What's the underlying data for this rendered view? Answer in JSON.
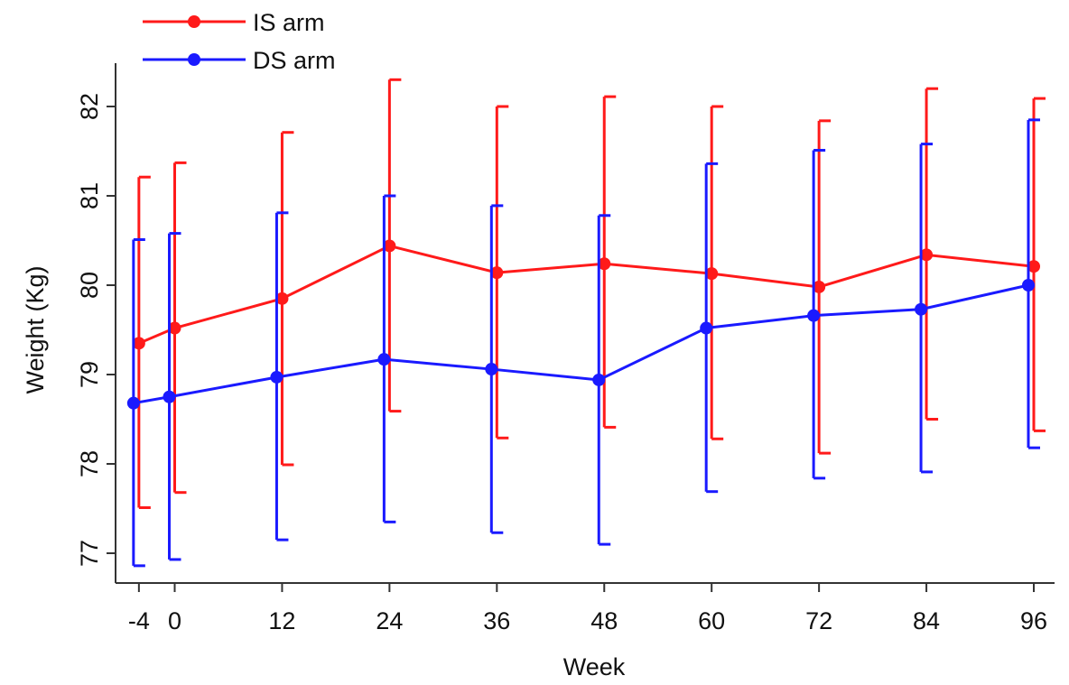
{
  "chart_data": {
    "type": "line",
    "title": "",
    "xlabel": "Week",
    "ylabel": "Weight (Kg)",
    "x_ticks": [
      -4,
      0,
      12,
      24,
      36,
      48,
      60,
      72,
      84,
      96
    ],
    "x_tick_labels": [
      "-4",
      "0",
      "12",
      "24",
      "36",
      "48",
      "60",
      "72",
      "84",
      "96"
    ],
    "y_ticks": [
      77,
      78,
      79,
      80,
      81,
      82
    ],
    "y_tick_labels": [
      "77",
      "78",
      "79",
      "80",
      "81",
      "82"
    ],
    "xlim": [
      -5,
      98
    ],
    "ylim": [
      76.7,
      82.5
    ],
    "grid": false,
    "legend_position": "top-left",
    "series": [
      {
        "name": "IS arm",
        "color": "#ff1a1a",
        "x": [
          -4,
          0,
          12,
          24,
          36,
          48,
          60,
          72,
          84,
          96
        ],
        "y": [
          79.35,
          79.52,
          79.85,
          80.44,
          80.14,
          80.24,
          80.13,
          79.98,
          80.34,
          80.21
        ],
        "err_low": [
          77.51,
          77.68,
          77.99,
          78.59,
          78.29,
          78.41,
          78.28,
          78.12,
          78.5,
          78.37
        ],
        "err_high": [
          81.21,
          81.37,
          81.71,
          82.3,
          82.0,
          82.11,
          82.0,
          81.84,
          82.2,
          82.09
        ]
      },
      {
        "name": "DS arm",
        "color": "#1a1aff",
        "x": [
          -4,
          0,
          12,
          24,
          36,
          48,
          60,
          72,
          84,
          96
        ],
        "y": [
          78.68,
          78.75,
          78.97,
          79.17,
          79.06,
          78.94,
          79.52,
          79.66,
          79.73,
          80.0
        ],
        "err_low": [
          76.86,
          76.93,
          77.15,
          77.35,
          77.23,
          77.1,
          77.69,
          77.84,
          77.91,
          78.18
        ],
        "err_high": [
          80.51,
          80.58,
          80.81,
          81.0,
          80.89,
          80.78,
          81.36,
          81.51,
          81.58,
          81.85
        ]
      }
    ]
  }
}
